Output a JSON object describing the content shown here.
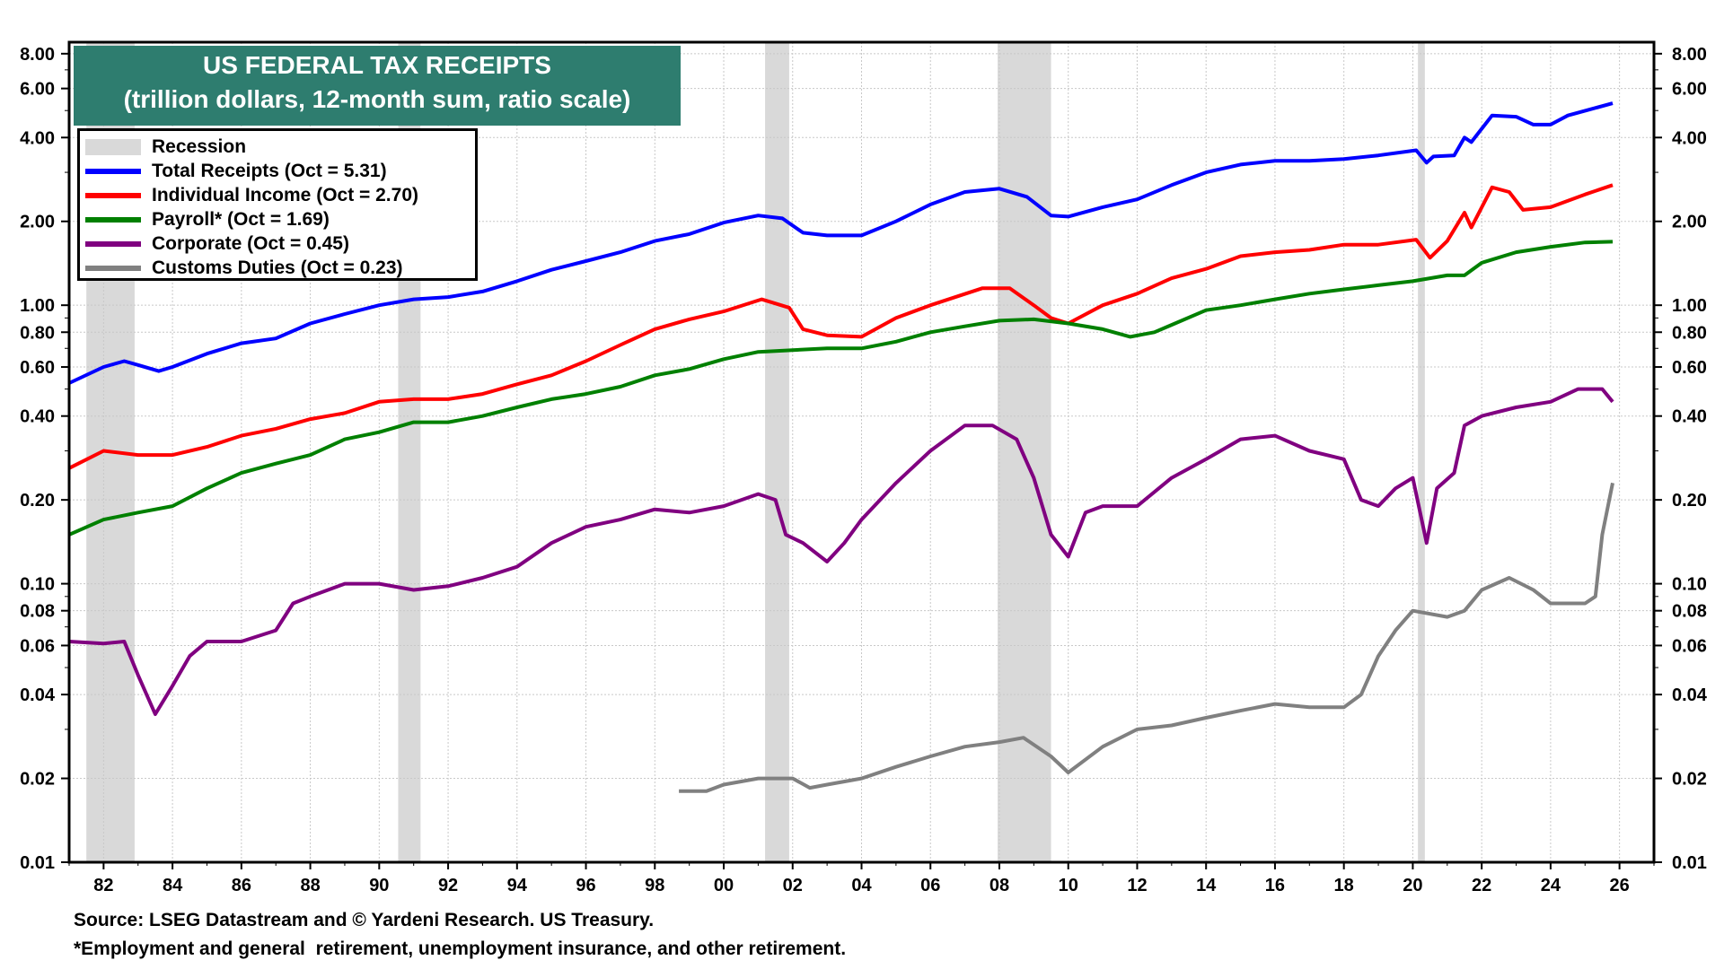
{
  "chart_data": {
    "type": "line",
    "title": "US FEDERAL TAX RECEIPTS",
    "subtitle": "(trillion dollars, 12-month sum, ratio scale)",
    "yscale": "log",
    "ylim": [
      0.01,
      8.8
    ],
    "xlim": [
      1981.0,
      2027.0
    ],
    "y_ticks": [
      0.01,
      0.02,
      0.04,
      0.06,
      0.08,
      0.1,
      0.2,
      0.4,
      0.6,
      0.8,
      1.0,
      2.0,
      4.0,
      6.0,
      8.0
    ],
    "y_tick_labels": [
      "0.01",
      "0.02",
      "0.04",
      "0.06",
      "0.08",
      "0.10",
      "0.20",
      "0.40",
      "0.60",
      "0.80",
      "1.00",
      "2.00",
      "4.00",
      "6.00",
      "8.00"
    ],
    "x_ticks": [
      1982,
      1984,
      1986,
      1988,
      1990,
      1992,
      1994,
      1996,
      1998,
      2000,
      2002,
      2004,
      2006,
      2008,
      2010,
      2012,
      2014,
      2016,
      2018,
      2020,
      2022,
      2024,
      2026
    ],
    "x_tick_labels": [
      "82",
      "84",
      "86",
      "88",
      "90",
      "92",
      "94",
      "96",
      "98",
      "00",
      "02",
      "04",
      "06",
      "08",
      "10",
      "12",
      "14",
      "16",
      "18",
      "20",
      "22",
      "24",
      "26"
    ],
    "grid": true,
    "legend_position": "top-left",
    "recession_label": "Recession",
    "recessions": [
      [
        1981.5,
        1982.9
      ],
      [
        1990.55,
        1991.2
      ],
      [
        2001.2,
        2001.9
      ],
      [
        2007.95,
        2009.5
      ],
      [
        2020.15,
        2020.35
      ]
    ],
    "series": [
      {
        "name": "Total Receipts (Oct = 5.31)",
        "color": "#0000ff",
        "points": [
          [
            1981,
            0.525
          ],
          [
            1982,
            0.6
          ],
          [
            1982.6,
            0.63
          ],
          [
            1983,
            0.61
          ],
          [
            1983.6,
            0.58
          ],
          [
            1984,
            0.6
          ],
          [
            1985,
            0.67
          ],
          [
            1986,
            0.73
          ],
          [
            1987,
            0.76
          ],
          [
            1988,
            0.86
          ],
          [
            1989,
            0.93
          ],
          [
            1990,
            1.0
          ],
          [
            1991,
            1.05
          ],
          [
            1992,
            1.07
          ],
          [
            1993,
            1.12
          ],
          [
            1994,
            1.22
          ],
          [
            1995,
            1.34
          ],
          [
            1996,
            1.44
          ],
          [
            1997,
            1.55
          ],
          [
            1998,
            1.7
          ],
          [
            1999,
            1.8
          ],
          [
            2000,
            1.98
          ],
          [
            2001,
            2.1
          ],
          [
            2001.7,
            2.05
          ],
          [
            2002.3,
            1.82
          ],
          [
            2003,
            1.78
          ],
          [
            2004,
            1.78
          ],
          [
            2005,
            2.0
          ],
          [
            2006,
            2.3
          ],
          [
            2007,
            2.55
          ],
          [
            2008,
            2.62
          ],
          [
            2008.8,
            2.45
          ],
          [
            2009.5,
            2.1
          ],
          [
            2010,
            2.08
          ],
          [
            2011,
            2.25
          ],
          [
            2012,
            2.4
          ],
          [
            2013,
            2.7
          ],
          [
            2014,
            3.0
          ],
          [
            2015,
            3.2
          ],
          [
            2016,
            3.3
          ],
          [
            2017,
            3.3
          ],
          [
            2018,
            3.35
          ],
          [
            2019,
            3.45
          ],
          [
            2020.1,
            3.6
          ],
          [
            2020.4,
            3.25
          ],
          [
            2020.6,
            3.42
          ],
          [
            2021.2,
            3.45
          ],
          [
            2021.5,
            4.0
          ],
          [
            2021.7,
            3.85
          ],
          [
            2022.3,
            4.8
          ],
          [
            2023,
            4.75
          ],
          [
            2023.5,
            4.45
          ],
          [
            2024,
            4.45
          ],
          [
            2024.5,
            4.8
          ],
          [
            2025.8,
            5.31
          ]
        ]
      },
      {
        "name": "Individual Income (Oct = 2.70)",
        "color": "#ff0000",
        "points": [
          [
            1981,
            0.26
          ],
          [
            1982,
            0.3
          ],
          [
            1983,
            0.29
          ],
          [
            1984,
            0.29
          ],
          [
            1985,
            0.31
          ],
          [
            1986,
            0.34
          ],
          [
            1987,
            0.36
          ],
          [
            1988,
            0.39
          ],
          [
            1989,
            0.41
          ],
          [
            1990,
            0.45
          ],
          [
            1991,
            0.46
          ],
          [
            1992,
            0.46
          ],
          [
            1993,
            0.48
          ],
          [
            1994,
            0.52
          ],
          [
            1995,
            0.56
          ],
          [
            1996,
            0.63
          ],
          [
            1997,
            0.72
          ],
          [
            1998,
            0.82
          ],
          [
            1999,
            0.89
          ],
          [
            2000,
            0.95
          ],
          [
            2001.1,
            1.05
          ],
          [
            2001.9,
            0.98
          ],
          [
            2002.3,
            0.82
          ],
          [
            2003,
            0.78
          ],
          [
            2004,
            0.77
          ],
          [
            2005,
            0.9
          ],
          [
            2006,
            1.0
          ],
          [
            2007.5,
            1.15
          ],
          [
            2008.3,
            1.15
          ],
          [
            2009,
            1.0
          ],
          [
            2009.5,
            0.9
          ],
          [
            2010,
            0.86
          ],
          [
            2011,
            1.0
          ],
          [
            2012,
            1.1
          ],
          [
            2013,
            1.25
          ],
          [
            2014,
            1.35
          ],
          [
            2015,
            1.5
          ],
          [
            2016,
            1.55
          ],
          [
            2017,
            1.58
          ],
          [
            2018,
            1.65
          ],
          [
            2019,
            1.65
          ],
          [
            2020.1,
            1.72
          ],
          [
            2020.5,
            1.48
          ],
          [
            2021,
            1.7
          ],
          [
            2021.5,
            2.15
          ],
          [
            2021.7,
            1.9
          ],
          [
            2022.3,
            2.65
          ],
          [
            2022.8,
            2.55
          ],
          [
            2023.2,
            2.2
          ],
          [
            2024,
            2.25
          ],
          [
            2025,
            2.5
          ],
          [
            2025.8,
            2.7
          ]
        ]
      },
      {
        "name": "Payroll* (Oct = 1.69)",
        "color": "#008000",
        "points": [
          [
            1981,
            0.15
          ],
          [
            1982,
            0.17
          ],
          [
            1983,
            0.18
          ],
          [
            1984,
            0.19
          ],
          [
            1985,
            0.22
          ],
          [
            1986,
            0.25
          ],
          [
            1987,
            0.27
          ],
          [
            1988,
            0.29
          ],
          [
            1989,
            0.33
          ],
          [
            1990,
            0.35
          ],
          [
            1991,
            0.38
          ],
          [
            1992,
            0.38
          ],
          [
            1993,
            0.4
          ],
          [
            1994,
            0.43
          ],
          [
            1995,
            0.46
          ],
          [
            1996,
            0.48
          ],
          [
            1997,
            0.51
          ],
          [
            1998,
            0.56
          ],
          [
            1999,
            0.59
          ],
          [
            2000,
            0.64
          ],
          [
            2001,
            0.68
          ],
          [
            2002,
            0.69
          ],
          [
            2003,
            0.7
          ],
          [
            2004,
            0.7
          ],
          [
            2005,
            0.74
          ],
          [
            2006,
            0.8
          ],
          [
            2007,
            0.84
          ],
          [
            2008,
            0.88
          ],
          [
            2009,
            0.89
          ],
          [
            2010,
            0.86
          ],
          [
            2011,
            0.82
          ],
          [
            2011.8,
            0.77
          ],
          [
            2012.5,
            0.8
          ],
          [
            2013,
            0.85
          ],
          [
            2014,
            0.96
          ],
          [
            2015,
            1.0
          ],
          [
            2016,
            1.05
          ],
          [
            2017,
            1.1
          ],
          [
            2018,
            1.14
          ],
          [
            2019,
            1.18
          ],
          [
            2020,
            1.22
          ],
          [
            2021,
            1.28
          ],
          [
            2021.5,
            1.28
          ],
          [
            2022,
            1.42
          ],
          [
            2023,
            1.55
          ],
          [
            2024,
            1.62
          ],
          [
            2025,
            1.68
          ],
          [
            2025.8,
            1.69
          ]
        ]
      },
      {
        "name": "Corporate (Oct = 0.45)",
        "color": "#800080",
        "points": [
          [
            1981,
            0.062
          ],
          [
            1982,
            0.061
          ],
          [
            1982.6,
            0.062
          ],
          [
            1983,
            0.047
          ],
          [
            1983.5,
            0.034
          ],
          [
            1984,
            0.043
          ],
          [
            1984.5,
            0.055
          ],
          [
            1985,
            0.062
          ],
          [
            1986,
            0.062
          ],
          [
            1987,
            0.068
          ],
          [
            1987.5,
            0.085
          ],
          [
            1988,
            0.09
          ],
          [
            1989,
            0.1
          ],
          [
            1990,
            0.1
          ],
          [
            1991,
            0.095
          ],
          [
            1992,
            0.098
          ],
          [
            1993,
            0.105
          ],
          [
            1994,
            0.115
          ],
          [
            1995,
            0.14
          ],
          [
            1996,
            0.16
          ],
          [
            1997,
            0.17
          ],
          [
            1998,
            0.185
          ],
          [
            1999,
            0.18
          ],
          [
            2000,
            0.19
          ],
          [
            2001,
            0.21
          ],
          [
            2001.5,
            0.2
          ],
          [
            2001.8,
            0.15
          ],
          [
            2002.3,
            0.14
          ],
          [
            2003,
            0.12
          ],
          [
            2003.5,
            0.14
          ],
          [
            2004,
            0.17
          ],
          [
            2005,
            0.23
          ],
          [
            2006,
            0.3
          ],
          [
            2007,
            0.37
          ],
          [
            2007.8,
            0.37
          ],
          [
            2008.5,
            0.33
          ],
          [
            2009,
            0.24
          ],
          [
            2009.5,
            0.15
          ],
          [
            2010,
            0.125
          ],
          [
            2010.5,
            0.18
          ],
          [
            2011,
            0.19
          ],
          [
            2012,
            0.19
          ],
          [
            2013,
            0.24
          ],
          [
            2014,
            0.28
          ],
          [
            2015,
            0.33
          ],
          [
            2016,
            0.34
          ],
          [
            2017,
            0.3
          ],
          [
            2018,
            0.28
          ],
          [
            2018.5,
            0.2
          ],
          [
            2019,
            0.19
          ],
          [
            2019.5,
            0.22
          ],
          [
            2020,
            0.24
          ],
          [
            2020.4,
            0.14
          ],
          [
            2020.7,
            0.22
          ],
          [
            2021.2,
            0.25
          ],
          [
            2021.5,
            0.37
          ],
          [
            2022,
            0.4
          ],
          [
            2023,
            0.43
          ],
          [
            2024,
            0.45
          ],
          [
            2024.8,
            0.5
          ],
          [
            2025.5,
            0.5
          ],
          [
            2025.8,
            0.45
          ]
        ]
      },
      {
        "name": "Customs Duties (Oct = 0.23)",
        "color": "#808080",
        "points": [
          [
            1998.7,
            0.018
          ],
          [
            1999.5,
            0.018
          ],
          [
            2000,
            0.019
          ],
          [
            2001,
            0.02
          ],
          [
            2002,
            0.02
          ],
          [
            2002.5,
            0.0185
          ],
          [
            2003,
            0.019
          ],
          [
            2004,
            0.02
          ],
          [
            2005,
            0.022
          ],
          [
            2006,
            0.024
          ],
          [
            2007,
            0.026
          ],
          [
            2008,
            0.027
          ],
          [
            2008.7,
            0.028
          ],
          [
            2009.5,
            0.024
          ],
          [
            2010,
            0.021
          ],
          [
            2011,
            0.026
          ],
          [
            2012,
            0.03
          ],
          [
            2013,
            0.031
          ],
          [
            2014,
            0.033
          ],
          [
            2015,
            0.035
          ],
          [
            2016,
            0.037
          ],
          [
            2017,
            0.036
          ],
          [
            2018,
            0.036
          ],
          [
            2018.5,
            0.04
          ],
          [
            2019,
            0.055
          ],
          [
            2019.5,
            0.068
          ],
          [
            2020,
            0.08
          ],
          [
            2021,
            0.076
          ],
          [
            2021.5,
            0.08
          ],
          [
            2022,
            0.095
          ],
          [
            2022.8,
            0.105
          ],
          [
            2023.5,
            0.095
          ],
          [
            2024,
            0.085
          ],
          [
            2025,
            0.085
          ],
          [
            2025.3,
            0.09
          ],
          [
            2025.5,
            0.15
          ],
          [
            2025.8,
            0.23
          ]
        ]
      }
    ]
  },
  "source": "Source: LSEG Datastream and © Yardeni Research. US Treasury.",
  "footnote": "*Employment and general  retirement, unemployment insurance, and other retirement."
}
